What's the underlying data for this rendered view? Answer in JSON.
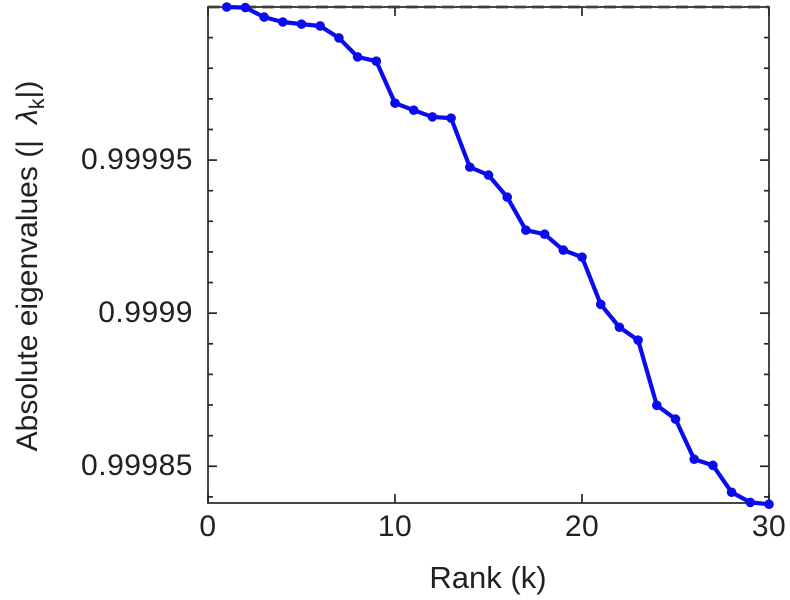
{
  "chart_data": {
    "type": "line",
    "title": "",
    "xlabel": "Rank (k)",
    "ylabel": "Absolute eigenvalues (|λk|)",
    "ylabel_parts": {
      "prefix": "Absolute eigenvalues (|",
      "lambda": "λ",
      "subscript": "k",
      "suffix": "|)"
    },
    "xlim": [
      0,
      30
    ],
    "ylim": [
      0.999838,
      1.0
    ],
    "xticks": [
      0,
      10,
      20,
      30
    ],
    "xtick_labels": [
      "0",
      "10",
      "20",
      "30"
    ],
    "yticks": [
      0.99985,
      0.9999,
      0.99995
    ],
    "ytick_labels": [
      "0.99985",
      "0.9999",
      "0.99995"
    ],
    "y_minor_ticks": [
      0.99984,
      0.99986,
      0.99987,
      0.99988,
      0.99989,
      0.99991,
      0.99992,
      0.99993,
      0.99994,
      0.99996,
      0.99997,
      0.99998,
      0.99999
    ],
    "grid": false,
    "legend": null,
    "line_color": "#0b0bf0",
    "axis_color": "#262626",
    "marker": "filled-circle",
    "reference_line": {
      "y": 1.0,
      "style": "dashed",
      "color": "#3f3f3f"
    },
    "series": [
      {
        "name": "absolute-eigenvalues",
        "x": [
          1,
          2,
          3,
          4,
          5,
          6,
          7,
          8,
          9,
          10,
          11,
          12,
          13,
          14,
          15,
          16,
          17,
          18,
          19,
          20,
          21,
          22,
          23,
          24,
          25,
          26,
          27,
          28,
          29,
          30
        ],
        "y": [
          1.0,
          0.9999998,
          0.9999967,
          0.9999951,
          0.9999944,
          0.9999938,
          0.9999899,
          0.9999837,
          0.9999823,
          0.9999686,
          0.9999663,
          0.9999641,
          0.9999637,
          0.9999477,
          0.9999451,
          0.9999379,
          0.9999271,
          0.9999258,
          0.9999206,
          0.9999183,
          0.9999029,
          0.9998954,
          0.9998912,
          0.9998699,
          0.9998654,
          0.9998523,
          0.9998503,
          0.9998415,
          0.9998382,
          0.9998376
        ]
      }
    ]
  }
}
